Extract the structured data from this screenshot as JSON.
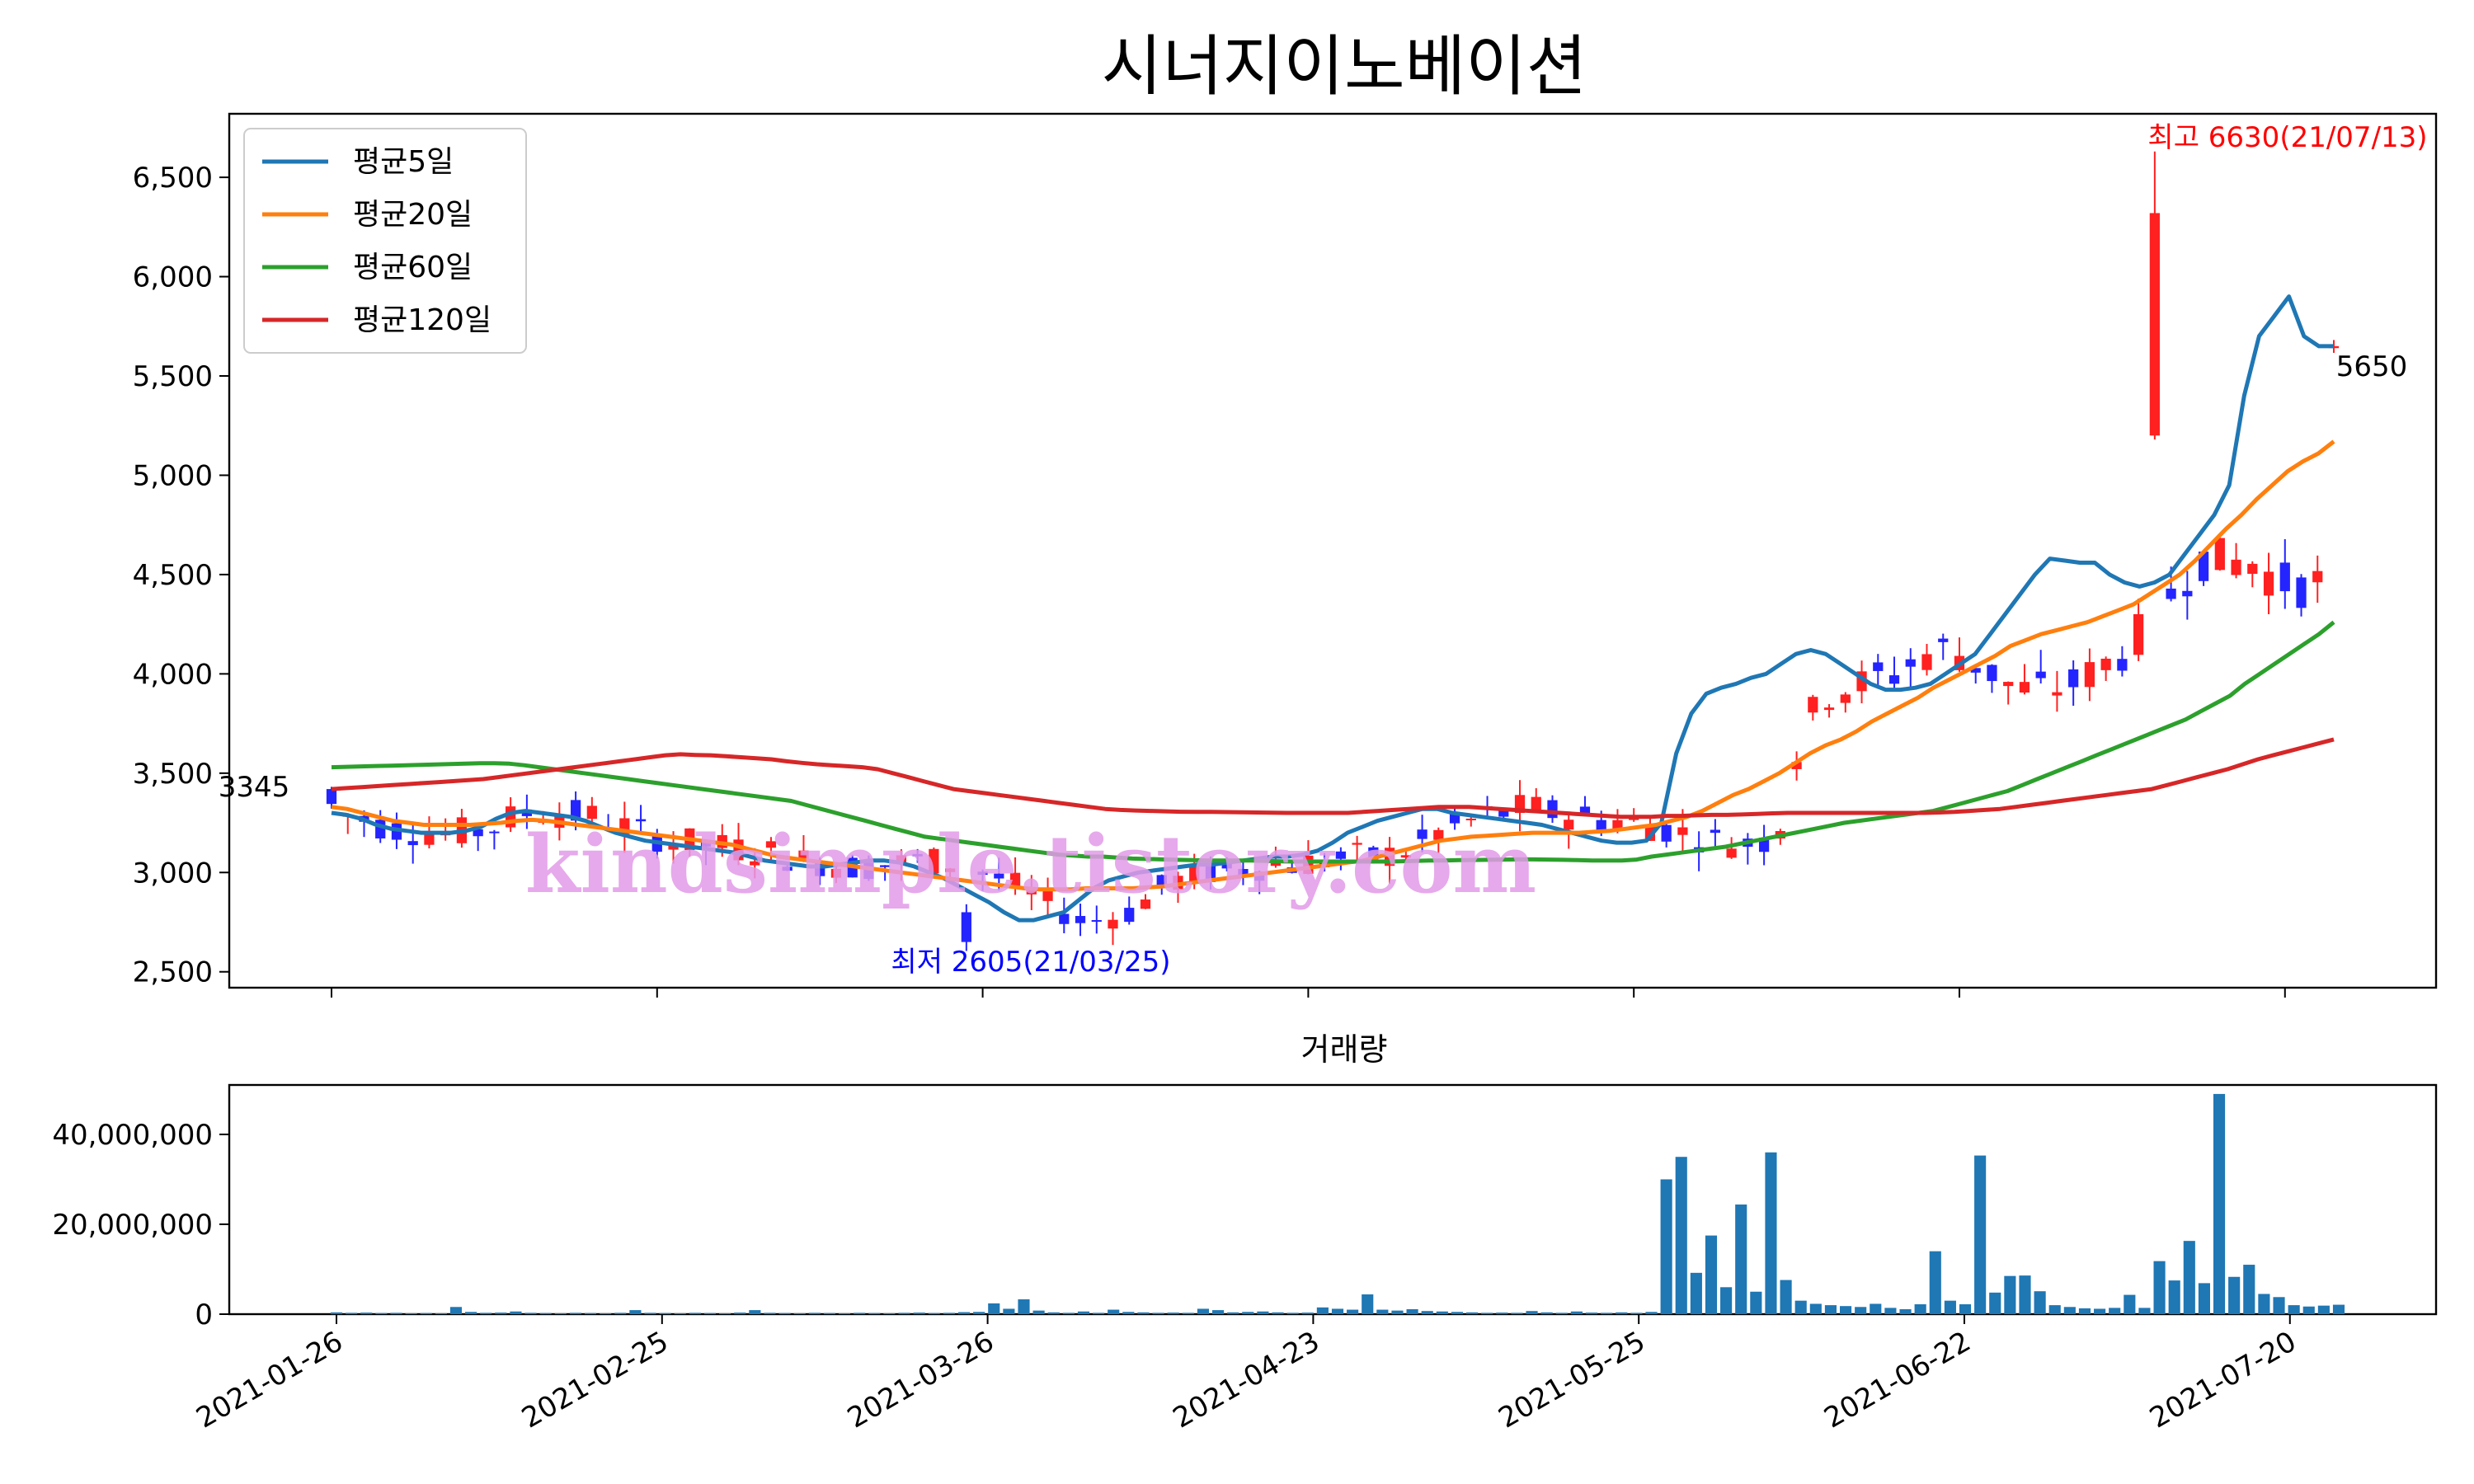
{
  "chart_data": [
    {
      "type": "candlestick",
      "title": "시너지이노베이션",
      "x_ticks": [
        "2021-01-26",
        "2021-02-25",
        "2021-03-26",
        "2021-04-23",
        "2021-05-25",
        "2021-06-22",
        "2021-07-20"
      ],
      "y_ticks": [
        "2,500",
        "3,000",
        "3,500",
        "4,000",
        "4,500",
        "5,000",
        "5,500",
        "6,000",
        "6,500"
      ],
      "ylim": [
        2420,
        6820
      ],
      "colors": {
        "up": "#ff2020",
        "down": "#2424ff"
      },
      "candles_summary": {
        "days": 124,
        "first_close": 3345,
        "last_close": 5650,
        "low": 2605,
        "high": 6630
      },
      "series": [
        {
          "name": "평균5일",
          "color": "#1f77b4",
          "values": [
            3300,
            3290,
            3270,
            3240,
            3220,
            3210,
            3200,
            3200,
            3200,
            3210,
            3230,
            3270,
            3300,
            3310,
            3300,
            3290,
            3280,
            3260,
            3230,
            3200,
            3180,
            3160,
            3150,
            3140,
            3130,
            3120,
            3110,
            3100,
            3080,
            3060,
            3050,
            3040,
            3030,
            3030,
            3040,
            3050,
            3060,
            3060,
            3050,
            3030,
            3000,
            2970,
            2930,
            2890,
            2850,
            2800,
            2760,
            2760,
            2780,
            2800,
            2860,
            2920,
            2960,
            2980,
            3000,
            3010,
            3020,
            3030,
            3040,
            3040,
            3050,
            3060,
            3070,
            3080,
            3080,
            3090,
            3110,
            3150,
            3200,
            3230,
            3260,
            3280,
            3300,
            3320,
            3320,
            3300,
            3290,
            3280,
            3270,
            3260,
            3250,
            3240,
            3220,
            3200,
            3180,
            3160,
            3150,
            3150,
            3160,
            3250,
            3600,
            3800,
            3900,
            3930,
            3950,
            3980,
            4000,
            4050,
            4100,
            4120,
            4100,
            4050,
            4000,
            3950,
            3920,
            3920,
            3930,
            3950,
            4000,
            4050,
            4100,
            4200,
            4300,
            4400,
            4500,
            4580,
            4570,
            4560,
            4560,
            4500,
            4460,
            4440,
            4460,
            4500,
            4600,
            4700,
            4800,
            4950,
            5400,
            5700,
            5800,
            5900,
            5700,
            5650,
            5650
          ]
        },
        {
          "name": "평균20일",
          "color": "#ff7f0e",
          "values": [
            3330,
            3320,
            3300,
            3280,
            3260,
            3250,
            3240,
            3240,
            3240,
            3240,
            3245,
            3250,
            3260,
            3265,
            3260,
            3250,
            3240,
            3230,
            3220,
            3210,
            3200,
            3190,
            3180,
            3170,
            3160,
            3150,
            3140,
            3120,
            3100,
            3080,
            3070,
            3060,
            3050,
            3040,
            3030,
            3020,
            3010,
            3000,
            2990,
            2980,
            2970,
            2960,
            2950,
            2940,
            2930,
            2920,
            2915,
            2915,
            2915,
            2920,
            2920,
            2920,
            2920,
            2925,
            2930,
            2940,
            2950,
            2960,
            2970,
            2980,
            2990,
            3000,
            3010,
            3020,
            3030,
            3040,
            3050,
            3060,
            3080,
            3100,
            3120,
            3140,
            3160,
            3170,
            3180,
            3185,
            3190,
            3195,
            3200,
            3200,
            3200,
            3200,
            3205,
            3210,
            3220,
            3230,
            3240,
            3260,
            3280,
            3310,
            3350,
            3390,
            3420,
            3460,
            3500,
            3550,
            3600,
            3640,
            3670,
            3710,
            3760,
            3800,
            3840,
            3880,
            3930,
            3970,
            4010,
            4050,
            4090,
            4140,
            4170,
            4200,
            4220,
            4240,
            4260,
            4290,
            4320,
            4350,
            4400,
            4450,
            4500,
            4570,
            4650,
            4730,
            4800,
            4880,
            4950,
            5020,
            5070,
            5110,
            5170
          ]
        },
        {
          "name": "평균60일",
          "color": "#2ca02c",
          "values": [
            3530,
            3532,
            3534,
            3536,
            3538,
            3540,
            3542,
            3544,
            3546,
            3548,
            3550,
            3550,
            3548,
            3540,
            3530,
            3520,
            3510,
            3500,
            3490,
            3480,
            3470,
            3460,
            3450,
            3440,
            3430,
            3420,
            3410,
            3400,
            3390,
            3380,
            3370,
            3360,
            3340,
            3320,
            3300,
            3280,
            3260,
            3240,
            3220,
            3200,
            3180,
            3170,
            3160,
            3150,
            3140,
            3130,
            3120,
            3110,
            3100,
            3090,
            3085,
            3080,
            3080,
            3075,
            3070,
            3068,
            3066,
            3064,
            3062,
            3060,
            3060,
            3060,
            3060,
            3058,
            3056,
            3055,
            3055,
            3055,
            3055,
            3055,
            3055,
            3055,
            3056,
            3058,
            3060,
            3060,
            3062,
            3063,
            3064,
            3065,
            3066,
            3066,
            3065,
            3064,
            3062,
            3060,
            3060,
            3060,
            3065,
            3080,
            3090,
            3100,
            3110,
            3120,
            3130,
            3145,
            3160,
            3175,
            3190,
            3205,
            3220,
            3235,
            3250,
            3260,
            3270,
            3280,
            3290,
            3300,
            3310,
            3330,
            3350,
            3370,
            3390,
            3410,
            3440,
            3470,
            3500,
            3530,
            3560,
            3590,
            3620,
            3650,
            3680,
            3710,
            3740,
            3770,
            3810,
            3850,
            3890,
            3950,
            4000,
            4050,
            4100,
            4150,
            4200,
            4260
          ]
        },
        {
          "name": "평균120일",
          "color": "#d62728",
          "values": [
            3420,
            3425,
            3430,
            3435,
            3440,
            3445,
            3450,
            3455,
            3460,
            3465,
            3470,
            3480,
            3490,
            3500,
            3510,
            3520,
            3530,
            3540,
            3550,
            3560,
            3570,
            3580,
            3590,
            3595,
            3592,
            3590,
            3585,
            3580,
            3575,
            3570,
            3560,
            3552,
            3545,
            3540,
            3535,
            3530,
            3520,
            3500,
            3480,
            3460,
            3440,
            3420,
            3410,
            3400,
            3390,
            3380,
            3370,
            3360,
            3350,
            3340,
            3330,
            3320,
            3315,
            3312,
            3310,
            3308,
            3306,
            3305,
            3305,
            3304,
            3303,
            3302,
            3301,
            3300,
            3300,
            3300,
            3300,
            3300,
            3305,
            3310,
            3315,
            3320,
            3325,
            3330,
            3330,
            3330,
            3325,
            3320,
            3315,
            3310,
            3305,
            3300,
            3295,
            3290,
            3285,
            3280,
            3280,
            3280,
            3285,
            3285,
            3288,
            3290,
            3290,
            3292,
            3295,
            3298,
            3300,
            3300,
            3300,
            3300,
            3300,
            3300,
            3300,
            3300,
            3300,
            3300,
            3302,
            3305,
            3310,
            3315,
            3320,
            3330,
            3340,
            3350,
            3360,
            3370,
            3380,
            3390,
            3400,
            3410,
            3420,
            3440,
            3460,
            3480,
            3500,
            3520,
            3545,
            3570,
            3590,
            3610,
            3630,
            3650,
            3670
          ]
        }
      ],
      "annotations": [
        {
          "text": "최고 6630(21/07/13)",
          "color": "#ff0000"
        },
        {
          "text": "최저 2605(21/03/25)",
          "color": "#0000ff"
        },
        {
          "text": "3345",
          "color": "#000000"
        },
        {
          "text": "5650",
          "color": "#000000"
        }
      ],
      "legend_position": "top-left",
      "watermark": "kindsimple.tistory.com"
    },
    {
      "type": "bar",
      "title": "거래량",
      "x_ticks": [
        "2021-01-26",
        "2021-02-25",
        "2021-03-26",
        "2021-04-23",
        "2021-05-25",
        "2021-06-22",
        "2021-07-20"
      ],
      "y_ticks": [
        "0",
        "20,000,000",
        "40,000,000"
      ],
      "ylim": [
        0,
        51000000
      ],
      "color": "#1f77b4",
      "values": [
        400000,
        300000,
        350000,
        250000,
        300000,
        200000,
        250000,
        200000,
        1600000,
        500000,
        300000,
        350000,
        600000,
        300000,
        250000,
        200000,
        300000,
        250000,
        200000,
        300000,
        900000,
        300000,
        250000,
        200000,
        300000,
        250000,
        200000,
        350000,
        900000,
        300000,
        250000,
        200000,
        300000,
        250000,
        200000,
        300000,
        250000,
        200000,
        300000,
        350000,
        250000,
        300000,
        450000,
        500000,
        2400000,
        1200000,
        3300000,
        800000,
        400000,
        300000,
        600000,
        300000,
        1000000,
        500000,
        400000,
        300000,
        350000,
        300000,
        1200000,
        900000,
        400000,
        500000,
        600000,
        400000,
        300000,
        350000,
        1500000,
        1200000,
        1000000,
        4400000,
        1000000,
        800000,
        1100000,
        700000,
        600000,
        500000,
        400000,
        300000,
        350000,
        300000,
        700000,
        400000,
        300000,
        600000,
        350000,
        300000,
        400000,
        300000,
        500000,
        30000000,
        35000000,
        9200000,
        17500000,
        6000000,
        24400000,
        5000000,
        36000000,
        7600000,
        3000000,
        2300000,
        2000000,
        1800000,
        1600000,
        2300000,
        1400000,
        1100000,
        2200000,
        14000000,
        3000000,
        2200000,
        35300000,
        4800000,
        8500000,
        8600000,
        5100000,
        2000000,
        1600000,
        1300000,
        1200000,
        1400000,
        4300000,
        1400000,
        11800000,
        7500000,
        16300000,
        6900000,
        49000000,
        8300000,
        11000000,
        4500000,
        3800000,
        2000000,
        1700000,
        1900000,
        2100000
      ]
    }
  ]
}
